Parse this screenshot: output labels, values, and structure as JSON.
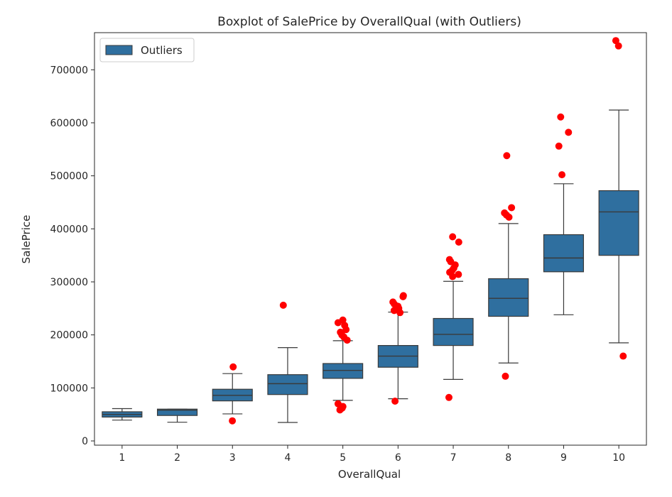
{
  "chart_data": {
    "type": "boxplot",
    "title": "Boxplot of SalePrice by OverallQual (with Outliers)",
    "xlabel": "OverallQual",
    "ylabel": "SalePrice",
    "ylim": [
      -8000,
      770000
    ],
    "yticks": [
      0,
      100000,
      200000,
      300000,
      400000,
      500000,
      600000,
      700000
    ],
    "categories": [
      "1",
      "2",
      "3",
      "4",
      "5",
      "6",
      "7",
      "8",
      "9",
      "10"
    ],
    "box_color": "#2f6f9f",
    "line_color": "#3a3a3a",
    "outlier_color": "#ff0000",
    "legend": {
      "label": "Outliers",
      "position": "upper-left"
    },
    "grid": false,
    "boxes": [
      {
        "category": "1",
        "whisker_low": 39300,
        "q1": 45000,
        "median": 50000,
        "q3": 55000,
        "whisker_high": 61000
      },
      {
        "category": "2",
        "whisker_low": 35300,
        "q1": 48000,
        "median": 58000,
        "q3": 60000,
        "whisker_high": 60000
      },
      {
        "category": "3",
        "whisker_low": 51000,
        "q1": 75500,
        "median": 86000,
        "q3": 97500,
        "whisker_high": 127000
      },
      {
        "category": "4",
        "whisker_low": 34900,
        "q1": 87500,
        "median": 108000,
        "q3": 125000,
        "whisker_high": 176000
      },
      {
        "category": "5",
        "whisker_low": 76500,
        "q1": 118000,
        "median": 133000,
        "q3": 146000,
        "whisker_high": 189000
      },
      {
        "category": "6",
        "whisker_low": 79500,
        "q1": 139000,
        "median": 160000,
        "q3": 180000,
        "whisker_high": 243000
      },
      {
        "category": "7",
        "whisker_low": 116000,
        "q1": 180000,
        "median": 201000,
        "q3": 231000,
        "whisker_high": 301000
      },
      {
        "category": "8",
        "whisker_low": 147000,
        "q1": 235000,
        "median": 269000,
        "q3": 306000,
        "whisker_high": 410000
      },
      {
        "category": "9",
        "whisker_low": 238000,
        "q1": 319000,
        "median": 345000,
        "q3": 389000,
        "whisker_high": 485000
      },
      {
        "category": "10",
        "whisker_low": 185000,
        "q1": 350000,
        "median": 432000,
        "q3": 472000,
        "whisker_high": 624000
      }
    ],
    "outliers": [
      {
        "category": "3",
        "values": [
          37900,
          139600
        ]
      },
      {
        "category": "4",
        "values": [
          256000
        ]
      },
      {
        "category": "5",
        "values": [
          58500,
          62000,
          65000,
          70000,
          190000,
          196000,
          200000,
          205000,
          210000,
          218000,
          223000,
          228000
        ]
      },
      {
        "category": "6",
        "values": [
          75000,
          242000,
          246000,
          250000,
          254000,
          258000,
          262000,
          272000,
          274000
        ]
      },
      {
        "category": "7",
        "values": [
          82000,
          310000,
          314000,
          318000,
          322000,
          326000,
          332000,
          338000,
          342000,
          375000,
          385000
        ]
      },
      {
        "category": "8",
        "values": [
          122000,
          422000,
          426000,
          430000,
          440000,
          538000
        ]
      },
      {
        "category": "9",
        "values": [
          502000,
          556000,
          582000,
          611000
        ]
      },
      {
        "category": "10",
        "values": [
          160000,
          745000,
          755000
        ]
      }
    ]
  }
}
